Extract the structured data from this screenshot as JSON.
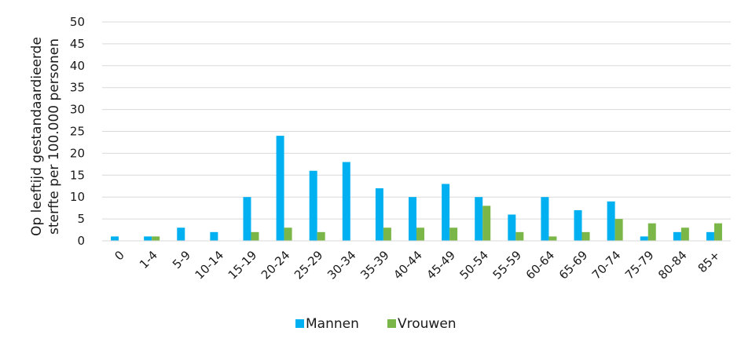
{
  "chart_data": {
    "type": "bar",
    "ylabel_lines": [
      "Op leeftijd gestandaardieerde",
      "sterfte per 100.000 personen"
    ],
    "ylim": [
      0,
      50
    ],
    "yticks": [
      0,
      5,
      10,
      15,
      20,
      25,
      30,
      35,
      40,
      45,
      50
    ],
    "grid": true,
    "legend_position": "bottom",
    "categories": [
      "0",
      "1-4",
      "5-9",
      "10-14",
      "15-19",
      "20-24",
      "25-29",
      "30-34",
      "35-39",
      "40-44",
      "45-49",
      "50-54",
      "55-59",
      "60-64",
      "65-69",
      "70-74",
      "75-79",
      "80-84",
      "85+"
    ],
    "series": [
      {
        "name": "Mannen",
        "color": "#00b0f0",
        "values": [
          1,
          1,
          3,
          2,
          10,
          24,
          16,
          18,
          12,
          10,
          13,
          10,
          6,
          10,
          7,
          9,
          1,
          2,
          2
        ]
      },
      {
        "name": "Vrouwen",
        "color": "#7ab648",
        "values": [
          0,
          1,
          0,
          0,
          2,
          3,
          2,
          0,
          3,
          3,
          3,
          8,
          2,
          1,
          2,
          5,
          4,
          3,
          4
        ]
      }
    ]
  }
}
